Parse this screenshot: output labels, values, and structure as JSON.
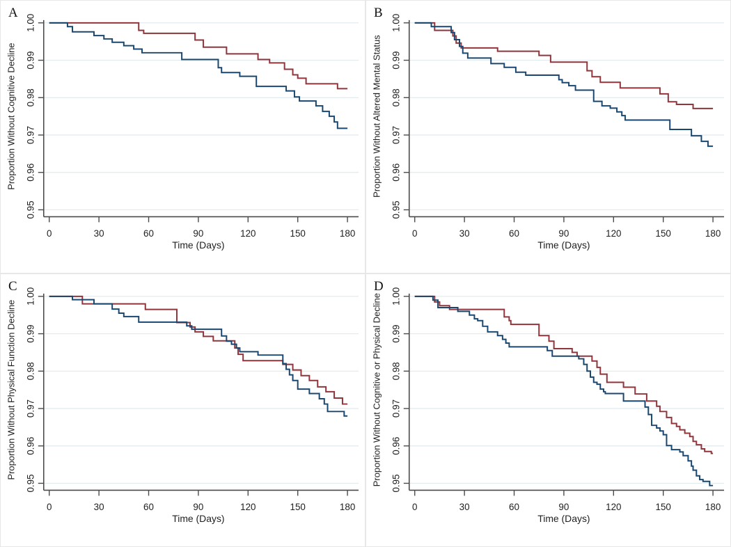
{
  "figure": {
    "xlabel": "Time (Days)",
    "x_tick_labels": [
      "0",
      "30",
      "60",
      "90",
      "120",
      "150",
      "180"
    ],
    "y_tick_labels": [
      "1.00",
      "0.99",
      "0.98",
      "0.97",
      "0.96",
      "0.95"
    ],
    "panel_letters": [
      "A",
      "B",
      "C",
      "D"
    ],
    "colors": {
      "maroon_line": "#90353B",
      "navy_line": "#1A476F",
      "gridline": "#e1eaee",
      "axis": "#4a4a4a",
      "text": "#1f1f1f"
    }
  },
  "chart_data": [
    {
      "type": "line",
      "step": true,
      "panel_letter": "A",
      "title": "",
      "xlabel": "Time (Days)",
      "ylabel": "Proportion Without Cognitive Decline",
      "xlim": [
        0,
        180
      ],
      "ylim": [
        0.95,
        1.0
      ],
      "x_ticks": [
        0,
        30,
        60,
        90,
        120,
        150,
        180
      ],
      "y_ticks": [
        1.0,
        0.99,
        0.98,
        0.97,
        0.96,
        0.95
      ],
      "grid": true,
      "legend": "none",
      "series": [
        {
          "name": "maroon-series",
          "color": "#90353B",
          "points": [
            [
              0,
              1.0
            ],
            [
              54,
              0.998
            ],
            [
              57,
              0.9972
            ],
            [
              88,
              0.9954
            ],
            [
              93,
              0.9935
            ],
            [
              107,
              0.9917
            ],
            [
              126,
              0.9902
            ],
            [
              133,
              0.9893
            ],
            [
              142,
              0.9876
            ],
            [
              147,
              0.9861
            ],
            [
              150,
              0.9852
            ],
            [
              155,
              0.9837
            ],
            [
              174,
              0.9824
            ],
            [
              180,
              0.9824
            ]
          ]
        },
        {
          "name": "navy-series",
          "color": "#1A476F",
          "points": [
            [
              0,
              1.0
            ],
            [
              11,
              0.999
            ],
            [
              14,
              0.9976
            ],
            [
              27,
              0.9966
            ],
            [
              33,
              0.9957
            ],
            [
              38,
              0.9948
            ],
            [
              45,
              0.9939
            ],
            [
              51,
              0.993
            ],
            [
              56,
              0.992
            ],
            [
              80,
              0.9902
            ],
            [
              102,
              0.988
            ],
            [
              104,
              0.9867
            ],
            [
              115,
              0.9857
            ],
            [
              125,
              0.983
            ],
            [
              143,
              0.9818
            ],
            [
              148,
              0.9802
            ],
            [
              151,
              0.9791
            ],
            [
              161,
              0.9778
            ],
            [
              165,
              0.9763
            ],
            [
              169,
              0.975
            ],
            [
              172,
              0.9735
            ],
            [
              174,
              0.9718
            ],
            [
              180,
              0.9718
            ]
          ]
        }
      ]
    },
    {
      "type": "line",
      "step": true,
      "panel_letter": "B",
      "title": "",
      "xlabel": "Time (Days)",
      "ylabel": "Proportion Without Altered Mental Status",
      "xlim": [
        0,
        180
      ],
      "ylim": [
        0.95,
        1.0
      ],
      "x_ticks": [
        0,
        30,
        60,
        90,
        120,
        150,
        180
      ],
      "y_ticks": [
        1.0,
        0.99,
        0.98,
        0.97,
        0.96,
        0.95
      ],
      "grid": true,
      "legend": "none",
      "series": [
        {
          "name": "maroon-series",
          "color": "#90353B",
          "points": [
            [
              0,
              1.0
            ],
            [
              12,
              0.998
            ],
            [
              23,
              0.9965
            ],
            [
              25,
              0.9946
            ],
            [
              28,
              0.9933
            ],
            [
              50,
              0.9924
            ],
            [
              75,
              0.9913
            ],
            [
              82,
              0.9895
            ],
            [
              104,
              0.9872
            ],
            [
              107,
              0.9856
            ],
            [
              112,
              0.9841
            ],
            [
              124,
              0.9826
            ],
            [
              148,
              0.981
            ],
            [
              153,
              0.9789
            ],
            [
              158,
              0.9782
            ],
            [
              168,
              0.9771
            ],
            [
              180,
              0.9771
            ]
          ]
        },
        {
          "name": "navy-series",
          "color": "#1A476F",
          "points": [
            [
              0,
              1.0
            ],
            [
              10,
              0.999
            ],
            [
              22,
              0.9974
            ],
            [
              24,
              0.9955
            ],
            [
              27,
              0.9937
            ],
            [
              29,
              0.9919
            ],
            [
              32,
              0.9906
            ],
            [
              46,
              0.9891
            ],
            [
              54,
              0.9881
            ],
            [
              61,
              0.9868
            ],
            [
              67,
              0.986
            ],
            [
              87,
              0.9848
            ],
            [
              89,
              0.984
            ],
            [
              93,
              0.9832
            ],
            [
              97,
              0.982
            ],
            [
              108,
              0.979
            ],
            [
              113,
              0.9778
            ],
            [
              118,
              0.9772
            ],
            [
              122,
              0.9762
            ],
            [
              125,
              0.9752
            ],
            [
              127,
              0.974
            ],
            [
              154,
              0.9715
            ],
            [
              167,
              0.9698
            ],
            [
              173,
              0.9683
            ],
            [
              177,
              0.967
            ],
            [
              180,
              0.967
            ]
          ]
        }
      ]
    },
    {
      "type": "line",
      "step": true,
      "panel_letter": "C",
      "title": "",
      "xlabel": "Time (Days)",
      "ylabel": "Proportion Without Physical Function Decline",
      "xlim": [
        0,
        180
      ],
      "ylim": [
        0.95,
        1.0
      ],
      "x_ticks": [
        0,
        30,
        60,
        90,
        120,
        150,
        180
      ],
      "y_ticks": [
        1.0,
        0.99,
        0.98,
        0.97,
        0.96,
        0.95
      ],
      "grid": true,
      "legend": "none",
      "series": [
        {
          "name": "maroon-series",
          "color": "#90353B",
          "points": [
            [
              0,
              1.0
            ],
            [
              20,
              0.998
            ],
            [
              58,
              0.9965
            ],
            [
              77,
              0.993
            ],
            [
              85,
              0.9918
            ],
            [
              88,
              0.9905
            ],
            [
              93,
              0.9893
            ],
            [
              99,
              0.9881
            ],
            [
              112,
              0.9862
            ],
            [
              114,
              0.9845
            ],
            [
              117,
              0.9828
            ],
            [
              141,
              0.9818
            ],
            [
              147,
              0.9803
            ],
            [
              152,
              0.9788
            ],
            [
              157,
              0.9775
            ],
            [
              162,
              0.9758
            ],
            [
              167,
              0.9745
            ],
            [
              172,
              0.9728
            ],
            [
              177,
              0.9712
            ],
            [
              180,
              0.9712
            ]
          ]
        },
        {
          "name": "navy-series",
          "color": "#1A476F",
          "points": [
            [
              0,
              1.0
            ],
            [
              14,
              0.9991
            ],
            [
              27,
              0.998
            ],
            [
              38,
              0.9966
            ],
            [
              42,
              0.9955
            ],
            [
              45,
              0.9946
            ],
            [
              54,
              0.9931
            ],
            [
              83,
              0.9921
            ],
            [
              86,
              0.9912
            ],
            [
              104,
              0.9894
            ],
            [
              107,
              0.988
            ],
            [
              110,
              0.9872
            ],
            [
              113,
              0.9862
            ],
            [
              115,
              0.9852
            ],
            [
              126,
              0.9843
            ],
            [
              141,
              0.982
            ],
            [
              143,
              0.9805
            ],
            [
              145,
              0.979
            ],
            [
              147,
              0.9775
            ],
            [
              150,
              0.9752
            ],
            [
              157,
              0.974
            ],
            [
              163,
              0.9726
            ],
            [
              166,
              0.9712
            ],
            [
              168,
              0.9692
            ],
            [
              178,
              0.968
            ],
            [
              180,
              0.968
            ]
          ]
        }
      ]
    },
    {
      "type": "line",
      "step": true,
      "panel_letter": "D",
      "title": "",
      "xlabel": "Time (Days)",
      "ylabel": "Proportion Without Cognitive or Physical Decline",
      "xlim": [
        0,
        180
      ],
      "ylim": [
        0.95,
        1.0
      ],
      "x_ticks": [
        0,
        30,
        60,
        90,
        120,
        150,
        180
      ],
      "y_ticks": [
        1.0,
        0.99,
        0.98,
        0.97,
        0.96,
        0.95
      ],
      "grid": true,
      "legend": "none",
      "series": [
        {
          "name": "maroon-series",
          "color": "#90353B",
          "points": [
            [
              0,
              1.0
            ],
            [
              12,
              0.9985
            ],
            [
              15,
              0.9975
            ],
            [
              21,
              0.9965
            ],
            [
              54,
              0.9945
            ],
            [
              57,
              0.9935
            ],
            [
              58,
              0.9925
            ],
            [
              75,
              0.9895
            ],
            [
              81,
              0.988
            ],
            [
              84,
              0.986
            ],
            [
              95,
              0.985
            ],
            [
              98,
              0.984
            ],
            [
              107,
              0.9827
            ],
            [
              110,
              0.981
            ],
            [
              112,
              0.9792
            ],
            [
              116,
              0.977
            ],
            [
              126,
              0.9757
            ],
            [
              133,
              0.9739
            ],
            [
              140,
              0.972
            ],
            [
              146,
              0.9706
            ],
            [
              148,
              0.9692
            ],
            [
              152,
              0.9676
            ],
            [
              155,
              0.966
            ],
            [
              158,
              0.9652
            ],
            [
              160,
              0.9643
            ],
            [
              163,
              0.9634
            ],
            [
              166,
              0.9625
            ],
            [
              168,
              0.9612
            ],
            [
              170,
              0.9603
            ],
            [
              173,
              0.9592
            ],
            [
              175,
              0.9585
            ],
            [
              179,
              0.958
            ],
            [
              180,
              0.958
            ]
          ]
        },
        {
          "name": "navy-series",
          "color": "#1A476F",
          "points": [
            [
              0,
              1.0
            ],
            [
              11,
              0.999
            ],
            [
              14,
              0.997
            ],
            [
              26,
              0.996
            ],
            [
              33,
              0.995
            ],
            [
              36,
              0.994
            ],
            [
              38,
              0.9935
            ],
            [
              41,
              0.992
            ],
            [
              44,
              0.9905
            ],
            [
              50,
              0.9895
            ],
            [
              53,
              0.9885
            ],
            [
              55,
              0.9875
            ],
            [
              57,
              0.9865
            ],
            [
              80,
              0.9855
            ],
            [
              83,
              0.984
            ],
            [
              99,
              0.9833
            ],
            [
              102,
              0.9818
            ],
            [
              104,
              0.98
            ],
            [
              106,
              0.9784
            ],
            [
              108,
              0.977
            ],
            [
              110,
              0.9765
            ],
            [
              112,
              0.9752
            ],
            [
              114,
              0.9745
            ],
            [
              115,
              0.974
            ],
            [
              126,
              0.972
            ],
            [
              139,
              0.9704
            ],
            [
              141,
              0.9684
            ],
            [
              143,
              0.9655
            ],
            [
              146,
              0.9648
            ],
            [
              148,
              0.964
            ],
            [
              150,
              0.963
            ],
            [
              152,
              0.9601
            ],
            [
              155,
              0.959
            ],
            [
              160,
              0.9584
            ],
            [
              162,
              0.9574
            ],
            [
              165,
              0.956
            ],
            [
              167,
              0.9546
            ],
            [
              168,
              0.9535
            ],
            [
              170,
              0.952
            ],
            [
              172,
              0.951
            ],
            [
              174,
              0.9505
            ],
            [
              178,
              0.9494
            ],
            [
              180,
              0.9494
            ]
          ]
        }
      ]
    }
  ]
}
